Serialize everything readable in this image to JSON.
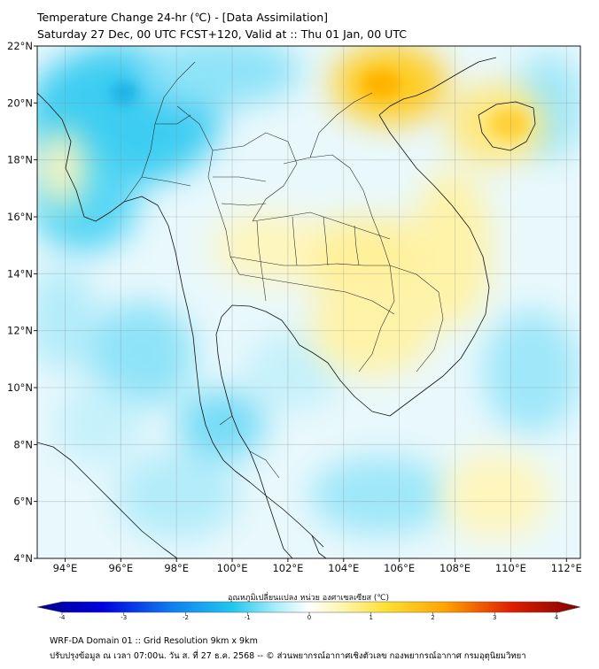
{
  "title": {
    "line1": "Temperature Change 24-hr (℃) - [Data Assimilation]",
    "line2": "Saturday 27 Dec, 00 UTC FCST+120, Valid at :: Thu 01 Jan, 00 UTC"
  },
  "map": {
    "lat_range": [
      4,
      22
    ],
    "lon_range": [
      93,
      112.5
    ],
    "lat_ticks": [
      {
        "value": 22,
        "label": "22°N"
      },
      {
        "value": 20,
        "label": "20°N"
      },
      {
        "value": 18,
        "label": "18°N"
      },
      {
        "value": 16,
        "label": "16°N"
      },
      {
        "value": 14,
        "label": "14°N"
      },
      {
        "value": 12,
        "label": "12°N"
      },
      {
        "value": 10,
        "label": "10°N"
      },
      {
        "value": 8,
        "label": "8°N"
      },
      {
        "value": 6,
        "label": "6°N"
      },
      {
        "value": 4,
        "label": "4°N"
      }
    ],
    "lon_ticks": [
      {
        "value": 94,
        "label": "94°E"
      },
      {
        "value": 96,
        "label": "96°E"
      },
      {
        "value": 98,
        "label": "98°E"
      },
      {
        "value": 100,
        "label": "100°E"
      },
      {
        "value": 102,
        "label": "102°E"
      },
      {
        "value": 104,
        "label": "104°E"
      },
      {
        "value": 106,
        "label": "106°E"
      },
      {
        "value": 108,
        "label": "108°E"
      },
      {
        "value": 110,
        "label": "110°E"
      },
      {
        "value": 112,
        "label": "112°E"
      }
    ]
  },
  "colorbar": {
    "title": "อุณหภูมิเปลี่ยนแปลง หน่วย องศาเซลเซียส (℃)",
    "ticks": [
      "-4",
      "-3",
      "-2",
      "-1",
      "0",
      "1",
      "2",
      "3",
      "4"
    ],
    "min": -4,
    "max": 4,
    "colors": {
      "cold": "#00008b",
      "cool": "#1fc8ee",
      "neutral": "#ffffff",
      "warm": "#ffe135",
      "hot": "#800000"
    }
  },
  "footer": {
    "line1": "WRF-DA Domain 01 :: Grid Resolution 9km x 9km",
    "line2": "ปรับปรุงข้อมูล ณ เวลา 07:00น. วัน ส. ที่ 27 ธ.ค. 2568 -- © ส่วนพยากรณ์อากาศเชิงตัวเลข กองพยากรณ์อากาศ กรมอุตุนิยมวิทยา"
  }
}
